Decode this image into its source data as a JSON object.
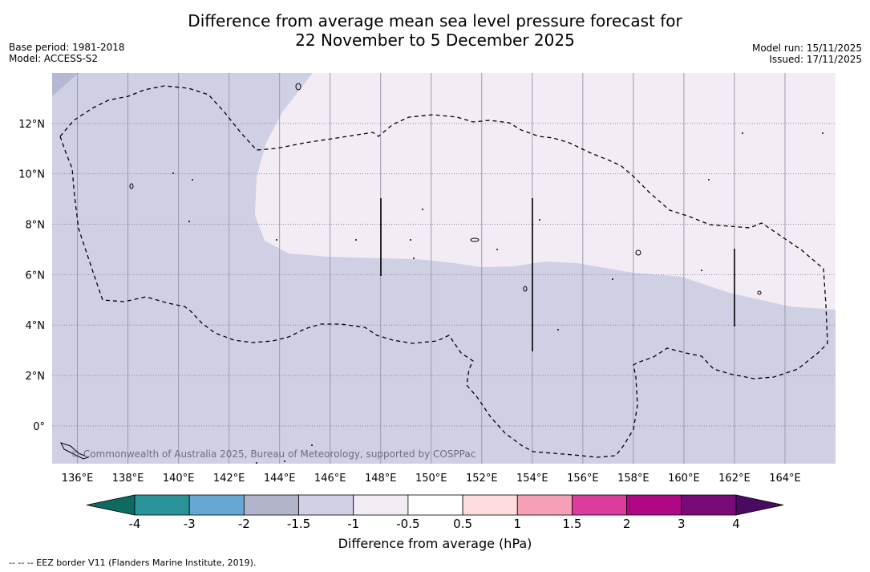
{
  "title_line1": "Difference from average mean sea level pressure forecast for",
  "title_line2": "22 November to 5 December 2025",
  "base_period": "Base period: 1981-2018",
  "model": "Model: ACCESS-S2",
  "model_run": "Model run: 15/11/2025",
  "issued": "Issued: 17/11/2025",
  "copyright": "© Commonwealth of Australia 2025, Bureau of Meteorology, supported by COSPPac",
  "footnote": "--  --  -- EEZ border V11 (Flanders Marine Institute, 2019).",
  "map": {
    "lon_range": [
      135,
      166
    ],
    "lat_range": [
      -1.5,
      14
    ],
    "lon_ticks": [
      136,
      138,
      140,
      142,
      144,
      146,
      148,
      150,
      152,
      154,
      156,
      158,
      160,
      162,
      164
    ],
    "lon_tick_labels": [
      "136°E",
      "138°E",
      "140°E",
      "142°E",
      "144°E",
      "146°E",
      "148°E",
      "150°E",
      "152°E",
      "154°E",
      "156°E",
      "158°E",
      "160°E",
      "162°E",
      "164°E"
    ],
    "lat_ticks": [
      0,
      2,
      4,
      6,
      8,
      10,
      12
    ],
    "lat_tick_labels": [
      "0°",
      "2°N",
      "4°N",
      "6°N",
      "8°N",
      "10°N",
      "12°N"
    ],
    "regions": [
      {
        "name": "background",
        "color": "#d0d0e4",
        "range": "-1.5 to -1"
      },
      {
        "name": "north-east",
        "color": "#f4ecf5",
        "range": "-1 to -0.5"
      },
      {
        "name": "north-west corner",
        "color": "#b4b8d4",
        "range": "-2 to -1.5"
      }
    ]
  },
  "colorbar": {
    "title": "Difference from average (hPa)",
    "labels": [
      "-4",
      "-3",
      "-2",
      "-1.5",
      "-1",
      "-0.5",
      "0.5",
      "1",
      "1.5",
      "2",
      "3",
      "4"
    ],
    "under_color": "#0e6b60",
    "over_color": "#4a0a62",
    "colors": [
      "#2a9499",
      "#66a7d4",
      "#b0b4cc",
      "#d0d0e4",
      "#f4ecf5",
      "#ffffff",
      "#fcdcdc",
      "#f6a0b8",
      "#dc3c9c",
      "#b00884",
      "#7a0a78"
    ]
  }
}
